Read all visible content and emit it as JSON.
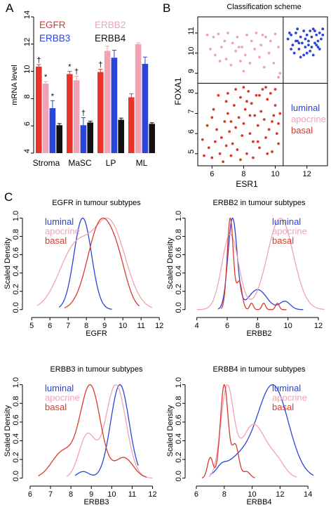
{
  "colors": {
    "egfr": "#e8342a",
    "erbb2": "#f2a3b3",
    "erbb3": "#2a45d8",
    "erbb4": "#111111",
    "luminal": "#2a45d8",
    "apocrine": "#f2a3b3",
    "basal": "#d93a2e"
  },
  "panel_letters": [
    "A",
    "B",
    "C"
  ],
  "chart_data": [
    {
      "type": "bar",
      "id": "A",
      "ylabel": "mRNA level",
      "ylim": [
        4,
        14
      ],
      "yticks": [
        4,
        6,
        8,
        10,
        12,
        14
      ],
      "categories": [
        "Stroma",
        "MaSC",
        "LP",
        "ML"
      ],
      "legend": [
        "EGFR",
        "ERBB2",
        "ERBB3",
        "ERBB4"
      ],
      "series": [
        {
          "name": "EGFR",
          "color": "#e8342a",
          "values": [
            10.35,
            9.8,
            9.95,
            8.1
          ],
          "errors": [
            0.15,
            0.2,
            0.2,
            0.25
          ]
        },
        {
          "name": "ERBB2",
          "color": "#f2a3b3",
          "values": [
            9.1,
            9.35,
            11.5,
            12.0
          ],
          "errors": [
            0.15,
            0.3,
            0.35,
            0.1
          ]
        },
        {
          "name": "ERBB3",
          "color": "#2a45d8",
          "values": [
            7.3,
            6.05,
            11.0,
            10.55
          ],
          "errors": [
            0.55,
            0.55,
            0.55,
            0.5
          ]
        },
        {
          "name": "ERBB4",
          "color": "#111111",
          "values": [
            6.05,
            6.25,
            6.45,
            6.15
          ],
          "errors": [
            0.12,
            0.1,
            0.12,
            0.08
          ]
        }
      ],
      "annotations": [
        {
          "category": 0,
          "series": 0,
          "text": "†"
        },
        {
          "category": 0,
          "series": 1,
          "text": "*"
        },
        {
          "category": 0,
          "series": 2,
          "text": "*"
        },
        {
          "category": 1,
          "series": 0,
          "text": "*"
        },
        {
          "category": 1,
          "series": 1,
          "text": "†"
        },
        {
          "category": 1,
          "series": 2,
          "text": "†"
        },
        {
          "category": 2,
          "series": 0,
          "text": "†"
        }
      ]
    },
    {
      "type": "scatter",
      "id": "B",
      "title": "Classification scheme",
      "xlabel": "ESR1",
      "ylabel": "FOXA1",
      "xlim": [
        5.1,
        13.3
      ],
      "ylim": [
        4.4,
        11.8
      ],
      "xticks": [
        6,
        8,
        10,
        12
      ],
      "yticks": [
        5,
        6,
        7,
        8,
        9,
        10,
        11
      ],
      "thresholds": {
        "x": 10.5,
        "y": 8.5
      },
      "legend": [
        "luminal",
        "apocrine",
        "basal"
      ],
      "series": [
        {
          "name": "apocrine",
          "color": "#f2a3b3",
          "points": [
            [
              5.7,
              10.9
            ],
            [
              6.1,
              10.8
            ],
            [
              6.4,
              10.95
            ],
            [
              6.8,
              10.6
            ],
            [
              7.0,
              11.0
            ],
            [
              7.3,
              10.5
            ],
            [
              7.6,
              10.8
            ],
            [
              7.9,
              10.3
            ],
            [
              8.2,
              10.9
            ],
            [
              8.5,
              10.6
            ],
            [
              8.8,
              11.0
            ],
            [
              9.1,
              10.4
            ],
            [
              9.4,
              10.8
            ],
            [
              9.7,
              10.6
            ],
            [
              10.0,
              10.95
            ],
            [
              5.9,
              10.2
            ],
            [
              6.2,
              9.9
            ],
            [
              6.6,
              10.3
            ],
            [
              6.9,
              9.7
            ],
            [
              7.2,
              9.4
            ],
            [
              7.5,
              10.1
            ],
            [
              7.8,
              9.6
            ],
            [
              8.1,
              9.9
            ],
            [
              8.4,
              9.5
            ],
            [
              8.7,
              10.2
            ],
            [
              9.0,
              9.8
            ],
            [
              9.3,
              9.3
            ],
            [
              9.6,
              10.0
            ],
            [
              9.9,
              9.5
            ],
            [
              10.2,
              10.3
            ],
            [
              10.2,
              8.8
            ],
            [
              10.3,
              9.0
            ],
            [
              8.0,
              9.1
            ],
            [
              6.5,
              9.6
            ],
            [
              7.7,
              10.3
            ],
            [
              9.2,
              10.9
            ]
          ]
        },
        {
          "name": "luminal",
          "color": "#2a45d8",
          "points": [
            [
              10.8,
              10.7
            ],
            [
              11.0,
              10.9
            ],
            [
              11.1,
              10.4
            ],
            [
              11.3,
              11.0
            ],
            [
              11.4,
              10.6
            ],
            [
              11.5,
              10.2
            ],
            [
              11.6,
              10.8
            ],
            [
              11.7,
              10.5
            ],
            [
              11.8,
              11.1
            ],
            [
              11.9,
              10.3
            ],
            [
              12.0,
              10.9
            ],
            [
              12.1,
              10.6
            ],
            [
              12.2,
              10.1
            ],
            [
              12.3,
              10.8
            ],
            [
              12.4,
              11.2
            ],
            [
              12.5,
              10.5
            ],
            [
              12.6,
              10.9
            ],
            [
              12.7,
              10.3
            ],
            [
              12.8,
              11.0
            ],
            [
              12.9,
              10.7
            ],
            [
              13.0,
              11.2
            ],
            [
              11.2,
              10.0
            ],
            [
              11.6,
              9.8
            ],
            [
              12.0,
              10.0
            ],
            [
              12.4,
              9.9
            ],
            [
              12.8,
              10.2
            ],
            [
              11.0,
              10.2
            ],
            [
              11.4,
              11.2
            ],
            [
              11.8,
              9.9
            ],
            [
              12.2,
              11.1
            ],
            [
              12.6,
              10.4
            ],
            [
              10.9,
              11.0
            ],
            [
              11.5,
              10.5
            ],
            [
              12.1,
              10.4
            ],
            [
              12.7,
              10.6
            ],
            [
              13.0,
              10.9
            ],
            [
              11.3,
              10.6
            ],
            [
              11.9,
              10.7
            ],
            [
              12.5,
              11.1
            ],
            [
              12.3,
              10.3
            ]
          ]
        },
        {
          "name": "basal",
          "color": "#d93a2e",
          "points": [
            [
              5.5,
              4.9
            ],
            [
              5.8,
              5.3
            ],
            [
              6.0,
              4.8
            ],
            [
              6.2,
              5.6
            ],
            [
              6.3,
              6.2
            ],
            [
              6.5,
              5.0
            ],
            [
              6.6,
              5.8
            ],
            [
              6.8,
              6.6
            ],
            [
              6.9,
              5.4
            ],
            [
              7.0,
              7.0
            ],
            [
              7.1,
              6.1
            ],
            [
              7.2,
              4.9
            ],
            [
              7.3,
              5.5
            ],
            [
              7.4,
              7.4
            ],
            [
              7.5,
              6.3
            ],
            [
              7.6,
              5.2
            ],
            [
              7.7,
              6.8
            ],
            [
              7.8,
              7.8
            ],
            [
              7.9,
              5.9
            ],
            [
              8.0,
              6.5
            ],
            [
              8.1,
              7.2
            ],
            [
              8.2,
              5.0
            ],
            [
              8.3,
              8.1
            ],
            [
              8.4,
              6.0
            ],
            [
              8.5,
              7.5
            ],
            [
              8.6,
              5.6
            ],
            [
              8.7,
              6.9
            ],
            [
              8.8,
              7.9
            ],
            [
              8.9,
              6.4
            ],
            [
              9.0,
              5.3
            ],
            [
              9.1,
              7.1
            ],
            [
              9.2,
              8.2
            ],
            [
              9.3,
              6.7
            ],
            [
              9.4,
              5.8
            ],
            [
              9.5,
              7.7
            ],
            [
              9.6,
              6.2
            ],
            [
              9.7,
              8.0
            ],
            [
              9.8,
              5.1
            ],
            [
              9.9,
              6.9
            ],
            [
              10.0,
              7.4
            ],
            [
              10.1,
              6.0
            ],
            [
              10.2,
              5.5
            ],
            [
              10.3,
              7.0
            ],
            [
              6.4,
              7.9
            ],
            [
              6.1,
              7.2
            ],
            [
              7.0,
              8.0
            ],
            [
              5.7,
              6.4
            ],
            [
              8.0,
              8.3
            ],
            [
              8.6,
              4.8
            ],
            [
              9.4,
              8.3
            ],
            [
              6.7,
              4.6
            ],
            [
              7.5,
              8.2
            ],
            [
              8.9,
              5.6
            ],
            [
              9.8,
              6.6
            ],
            [
              6.0,
              6.8
            ],
            [
              7.2,
              6.6
            ],
            [
              8.2,
              7.6
            ],
            [
              9.0,
              7.9
            ],
            [
              10.0,
              8.2
            ],
            [
              5.4,
              5.7
            ],
            [
              7.8,
              4.7
            ],
            [
              9.5,
              5.0
            ],
            [
              6.9,
              7.6
            ],
            [
              8.4,
              6.9
            ],
            [
              10.2,
              6.5
            ]
          ]
        }
      ]
    },
    {
      "type": "line",
      "id": "C1",
      "title": "EGFR  in tumour subtypes",
      "xlabel": "EGFR",
      "ylabel": "Scaled Density",
      "xlim": [
        4.8,
        12.3
      ],
      "ylim": [
        0,
        1.05
      ],
      "xticks": [
        5,
        6,
        7,
        8,
        9,
        10,
        11,
        12
      ],
      "yticks": [
        0.0,
        0.2,
        0.4,
        0.6,
        0.8,
        1.0
      ],
      "legend": [
        "luminal",
        "apocrine",
        "basal"
      ],
      "series": [
        {
          "name": "luminal",
          "color": "#2a45d8",
          "components": [
            [
              7.8,
              0.48,
              1.0
            ]
          ],
          "min": 6.5,
          "max": 9.4
        },
        {
          "name": "apocrine",
          "color": "#f2a3b3",
          "components": [
            [
              7.4,
              0.9,
              0.7
            ],
            [
              9.3,
              0.85,
              0.95
            ]
          ],
          "min": 5.3,
          "max": 11.6
        },
        {
          "name": "basal",
          "color": "#d93a2e",
          "components": [
            [
              8.8,
              0.72,
              1.0
            ],
            [
              9.8,
              0.5,
              0.3
            ]
          ],
          "min": 6.8,
          "max": 10.9
        }
      ]
    },
    {
      "type": "line",
      "id": "C2",
      "title": "ERBB2  in tumour subtypes",
      "xlabel": "ERBB2",
      "ylabel": "Scaled Density",
      "xlim": [
        3.6,
        12.6
      ],
      "ylim": [
        0,
        1.05
      ],
      "xticks": [
        4,
        6,
        8,
        10,
        12
      ],
      "yticks": [
        0.0,
        0.2,
        0.4,
        0.6,
        0.8,
        1.0
      ],
      "legend": [
        "luminal",
        "apocrine",
        "basal"
      ],
      "series": [
        {
          "name": "luminal",
          "color": "#2a45d8",
          "components": [
            [
              6.35,
              0.3,
              1.0
            ],
            [
              8.0,
              0.6,
              0.22
            ],
            [
              9.8,
              0.35,
              0.09
            ]
          ],
          "min": 5.4,
          "max": 11.0
        },
        {
          "name": "apocrine",
          "color": "#f2a3b3",
          "components": [
            [
              6.2,
              0.55,
              0.78
            ],
            [
              9.5,
              0.85,
              0.95
            ]
          ],
          "min": 4.0,
          "max": 12.4
        },
        {
          "name": "basal",
          "color": "#d93a2e",
          "components": [
            [
              6.2,
              0.2,
              1.0
            ],
            [
              6.8,
              0.18,
              0.3
            ],
            [
              7.6,
              0.12,
              0.07
            ],
            [
              8.4,
              0.12,
              0.07
            ],
            [
              9.3,
              0.12,
              0.07
            ]
          ],
          "min": 5.6,
          "max": 9.9
        }
      ]
    },
    {
      "type": "line",
      "id": "C3",
      "title": "ERBB3  in tumour subtypes",
      "xlabel": "ERBB3",
      "ylabel": "Scaled Density",
      "xlim": [
        5.9,
        12.6
      ],
      "ylim": [
        0,
        1.05
      ],
      "xticks": [
        6,
        7,
        8,
        9,
        10,
        11,
        12
      ],
      "yticks": [
        0.0,
        0.2,
        0.4,
        0.6,
        0.8,
        1.0
      ],
      "legend": [
        "luminal",
        "apocrine",
        "basal"
      ],
      "series": [
        {
          "name": "luminal",
          "color": "#2a45d8",
          "components": [
            [
              10.4,
              0.45,
              1.0
            ],
            [
              8.6,
              0.3,
              0.07
            ]
          ],
          "min": 8.2,
          "max": 11.3
        },
        {
          "name": "apocrine",
          "color": "#f2a3b3",
          "components": [
            [
              10.2,
              0.5,
              0.98
            ],
            [
              8.8,
              0.4,
              0.45
            ]
          ],
          "min": 7.8,
          "max": 12.0
        },
        {
          "name": "basal",
          "color": "#d93a2e",
          "components": [
            [
              8.95,
              0.5,
              1.0
            ],
            [
              7.6,
              0.55,
              0.28
            ],
            [
              10.6,
              0.45,
              0.22
            ]
          ],
          "min": 6.4,
          "max": 11.7
        }
      ]
    },
    {
      "type": "line",
      "id": "C4",
      "title": "ERBB4  in tumour subtypes",
      "xlabel": "ERBB4",
      "ylabel": "Scaled Density",
      "xlim": [
        5.6,
        15.4
      ],
      "ylim": [
        0,
        1.05
      ],
      "xticks": [
        6,
        8,
        10,
        12,
        14
      ],
      "yticks": [
        0.0,
        0.2,
        0.4,
        0.6,
        0.8,
        1.0
      ],
      "legend": [
        "luminal",
        "apocrine",
        "basal"
      ],
      "series": [
        {
          "name": "luminal",
          "color": "#2a45d8",
          "components": [
            [
              11.5,
              1.1,
              1.0
            ],
            [
              9.0,
              1.1,
              0.2
            ],
            [
              7.8,
              0.3,
              0.05
            ]
          ],
          "min": 7.0,
          "max": 14.4
        },
        {
          "name": "apocrine",
          "color": "#f2a3b3",
          "components": [
            [
              8.2,
              0.45,
              0.98
            ],
            [
              10.1,
              0.9,
              0.6
            ],
            [
              11.8,
              0.6,
              0.15
            ]
          ],
          "min": 6.9,
          "max": 13.2
        },
        {
          "name": "basal",
          "color": "#d93a2e",
          "components": [
            [
              8.0,
              0.28,
              1.0
            ],
            [
              7.0,
              0.2,
              0.22
            ],
            [
              8.8,
              0.25,
              0.35
            ],
            [
              9.6,
              0.25,
              0.07
            ]
          ],
          "min": 6.4,
          "max": 10.2
        }
      ]
    }
  ]
}
